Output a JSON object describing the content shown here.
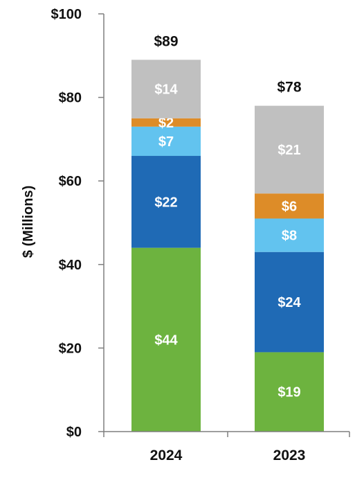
{
  "chart_data": {
    "type": "bar",
    "stacked": true,
    "categories": [
      "2024",
      "2023"
    ],
    "series": [
      {
        "values": [
          44,
          19
        ],
        "labels": [
          "$44",
          "$19"
        ],
        "color": "#6db33f"
      },
      {
        "values": [
          22,
          24
        ],
        "labels": [
          "$22",
          "$24"
        ],
        "color": "#1f6ab5"
      },
      {
        "values": [
          7,
          8
        ],
        "labels": [
          "$7",
          "$8"
        ],
        "color": "#62c3ef"
      },
      {
        "values": [
          2,
          6
        ],
        "labels": [
          "$2",
          "$6"
        ],
        "color": "#dd8c28"
      },
      {
        "values": [
          14,
          21
        ],
        "labels": [
          "$14",
          "$21"
        ],
        "color": "#c0c0c0"
      }
    ],
    "totals": [
      89,
      78
    ],
    "total_labels": [
      "$89",
      "$78"
    ],
    "ylabel": "$ (Millions)",
    "ylim": [
      0,
      100
    ],
    "yticks": [
      0,
      20,
      40,
      60,
      80,
      100
    ],
    "ytick_labels": [
      "$0",
      "$20",
      "$40",
      "$60",
      "$80",
      "$100"
    ],
    "grid": false,
    "legend": "none",
    "axis_color": "#7f7f7f"
  }
}
